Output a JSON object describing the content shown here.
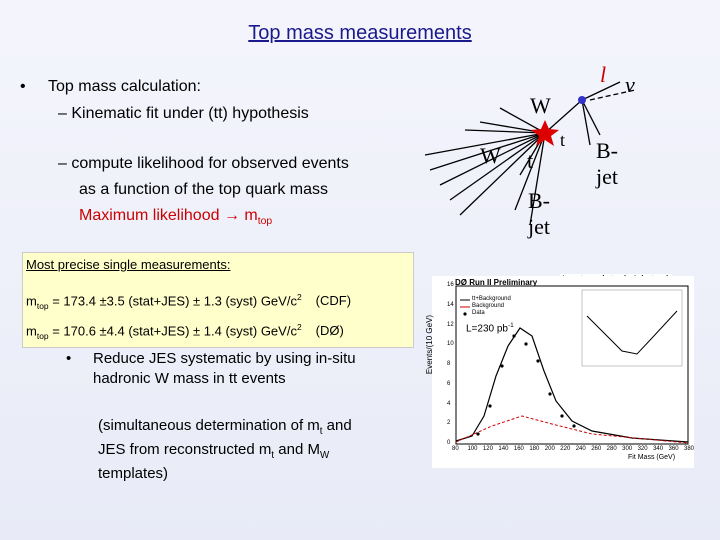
{
  "header": {
    "title": "Top mass measurements"
  },
  "bullets": {
    "main": "Top mass calculation:",
    "sub1": "Kinematic fit under (tt) hypothesis",
    "sub2": [
      "compute likelihood for observed events",
      "as a function of the top quark mass"
    ],
    "max_likelihood": {
      "text": "Maximum likelihood → m",
      "sub": "top"
    }
  },
  "diagram": {
    "labels": [
      "W",
      "W",
      "t",
      "t",
      "l",
      "ν",
      "B-",
      "jet",
      "B-",
      "jet"
    ]
  },
  "box": {
    "heading": "Most precise single measurements:",
    "rows": [
      {
        "m": "m",
        "sub": "top",
        "text": " = 173.4 ±3.5 (stat+JES) ± 1.3 (syst) GeV/c",
        "sup": "2",
        "exp": "(CDF)"
      },
      {
        "m": "m",
        "sub": "top",
        "text": " = 170.6 ±4.4 (stat+JES) ± 1.4 (syst) GeV/c",
        "sup": "2",
        "exp": "(DØ)"
      }
    ]
  },
  "notes": {
    "jes": [
      "Reduce JES systematic by using in-situ",
      "hadronic W mass in tt events"
    ],
    "simul": [
      "(simultaneous determination of m",
      "t",
      " and",
      "JES from    reconstructed m",
      "t",
      " and M",
      "W",
      "templates)"
    ]
  },
  "plot": {
    "caption": "Lepton+jets (≥1 b-tag)",
    "title": "DØ Run II Preliminary",
    "lumi": "L=230 pb",
    "lumi_sup": "-1",
    "xlabel": "Fit Mass (GeV)",
    "ylabel": "Events/(10 GeV)",
    "legend": [
      "tt+Background",
      "Background",
      "Data"
    ],
    "xticks": [
      "80",
      "100",
      "120",
      "140",
      "160",
      "180",
      "200",
      "220",
      "240",
      "260",
      "280",
      "300",
      "320",
      "340",
      "360",
      "380"
    ],
    "yticks": [
      "0",
      "2",
      "4",
      "6",
      "8",
      "10",
      "12",
      "14",
      "16"
    ]
  }
}
